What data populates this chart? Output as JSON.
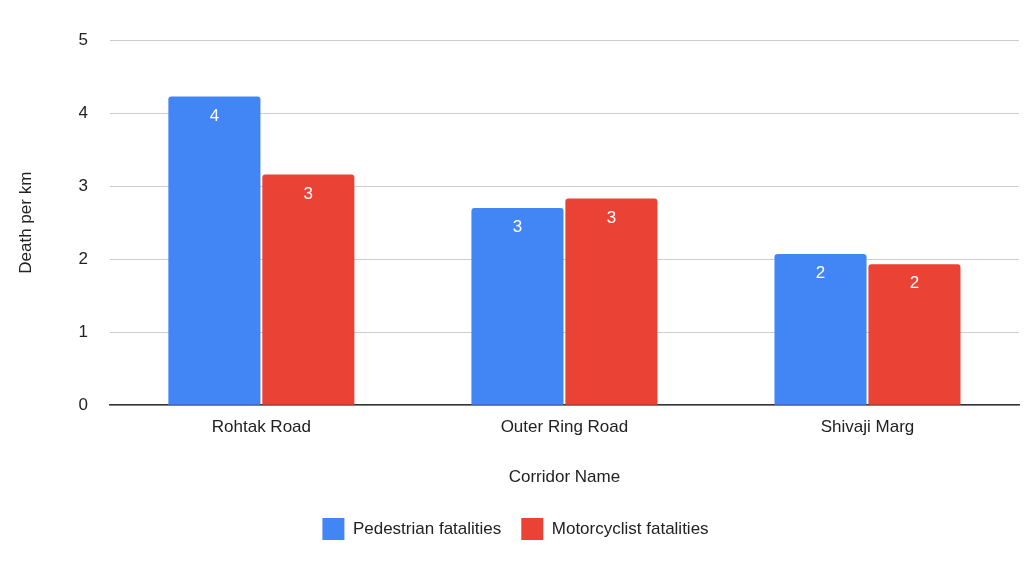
{
  "chart_data": {
    "type": "bar",
    "xlabel": "Corridor Name",
    "ylabel": "Death per km",
    "categories": [
      "Rohtak Road",
      "Outer Ring Road",
      "Shivaji Marg"
    ],
    "series": [
      {
        "name": "Pedestrian fatalities",
        "color": "#4285f4",
        "values": [
          4.23,
          2.7,
          2.07
        ],
        "value_labels": [
          "4",
          "3",
          "2"
        ]
      },
      {
        "name": "Motorcyclist fatalities",
        "color": "#ea4335",
        "values": [
          3.16,
          2.83,
          1.93
        ],
        "value_labels": [
          "3",
          "3",
          "2"
        ]
      }
    ],
    "ylim": [
      0,
      5
    ],
    "yticks": [
      0,
      1,
      2,
      3,
      4,
      5
    ],
    "grid": "y",
    "legend": "bottom"
  }
}
